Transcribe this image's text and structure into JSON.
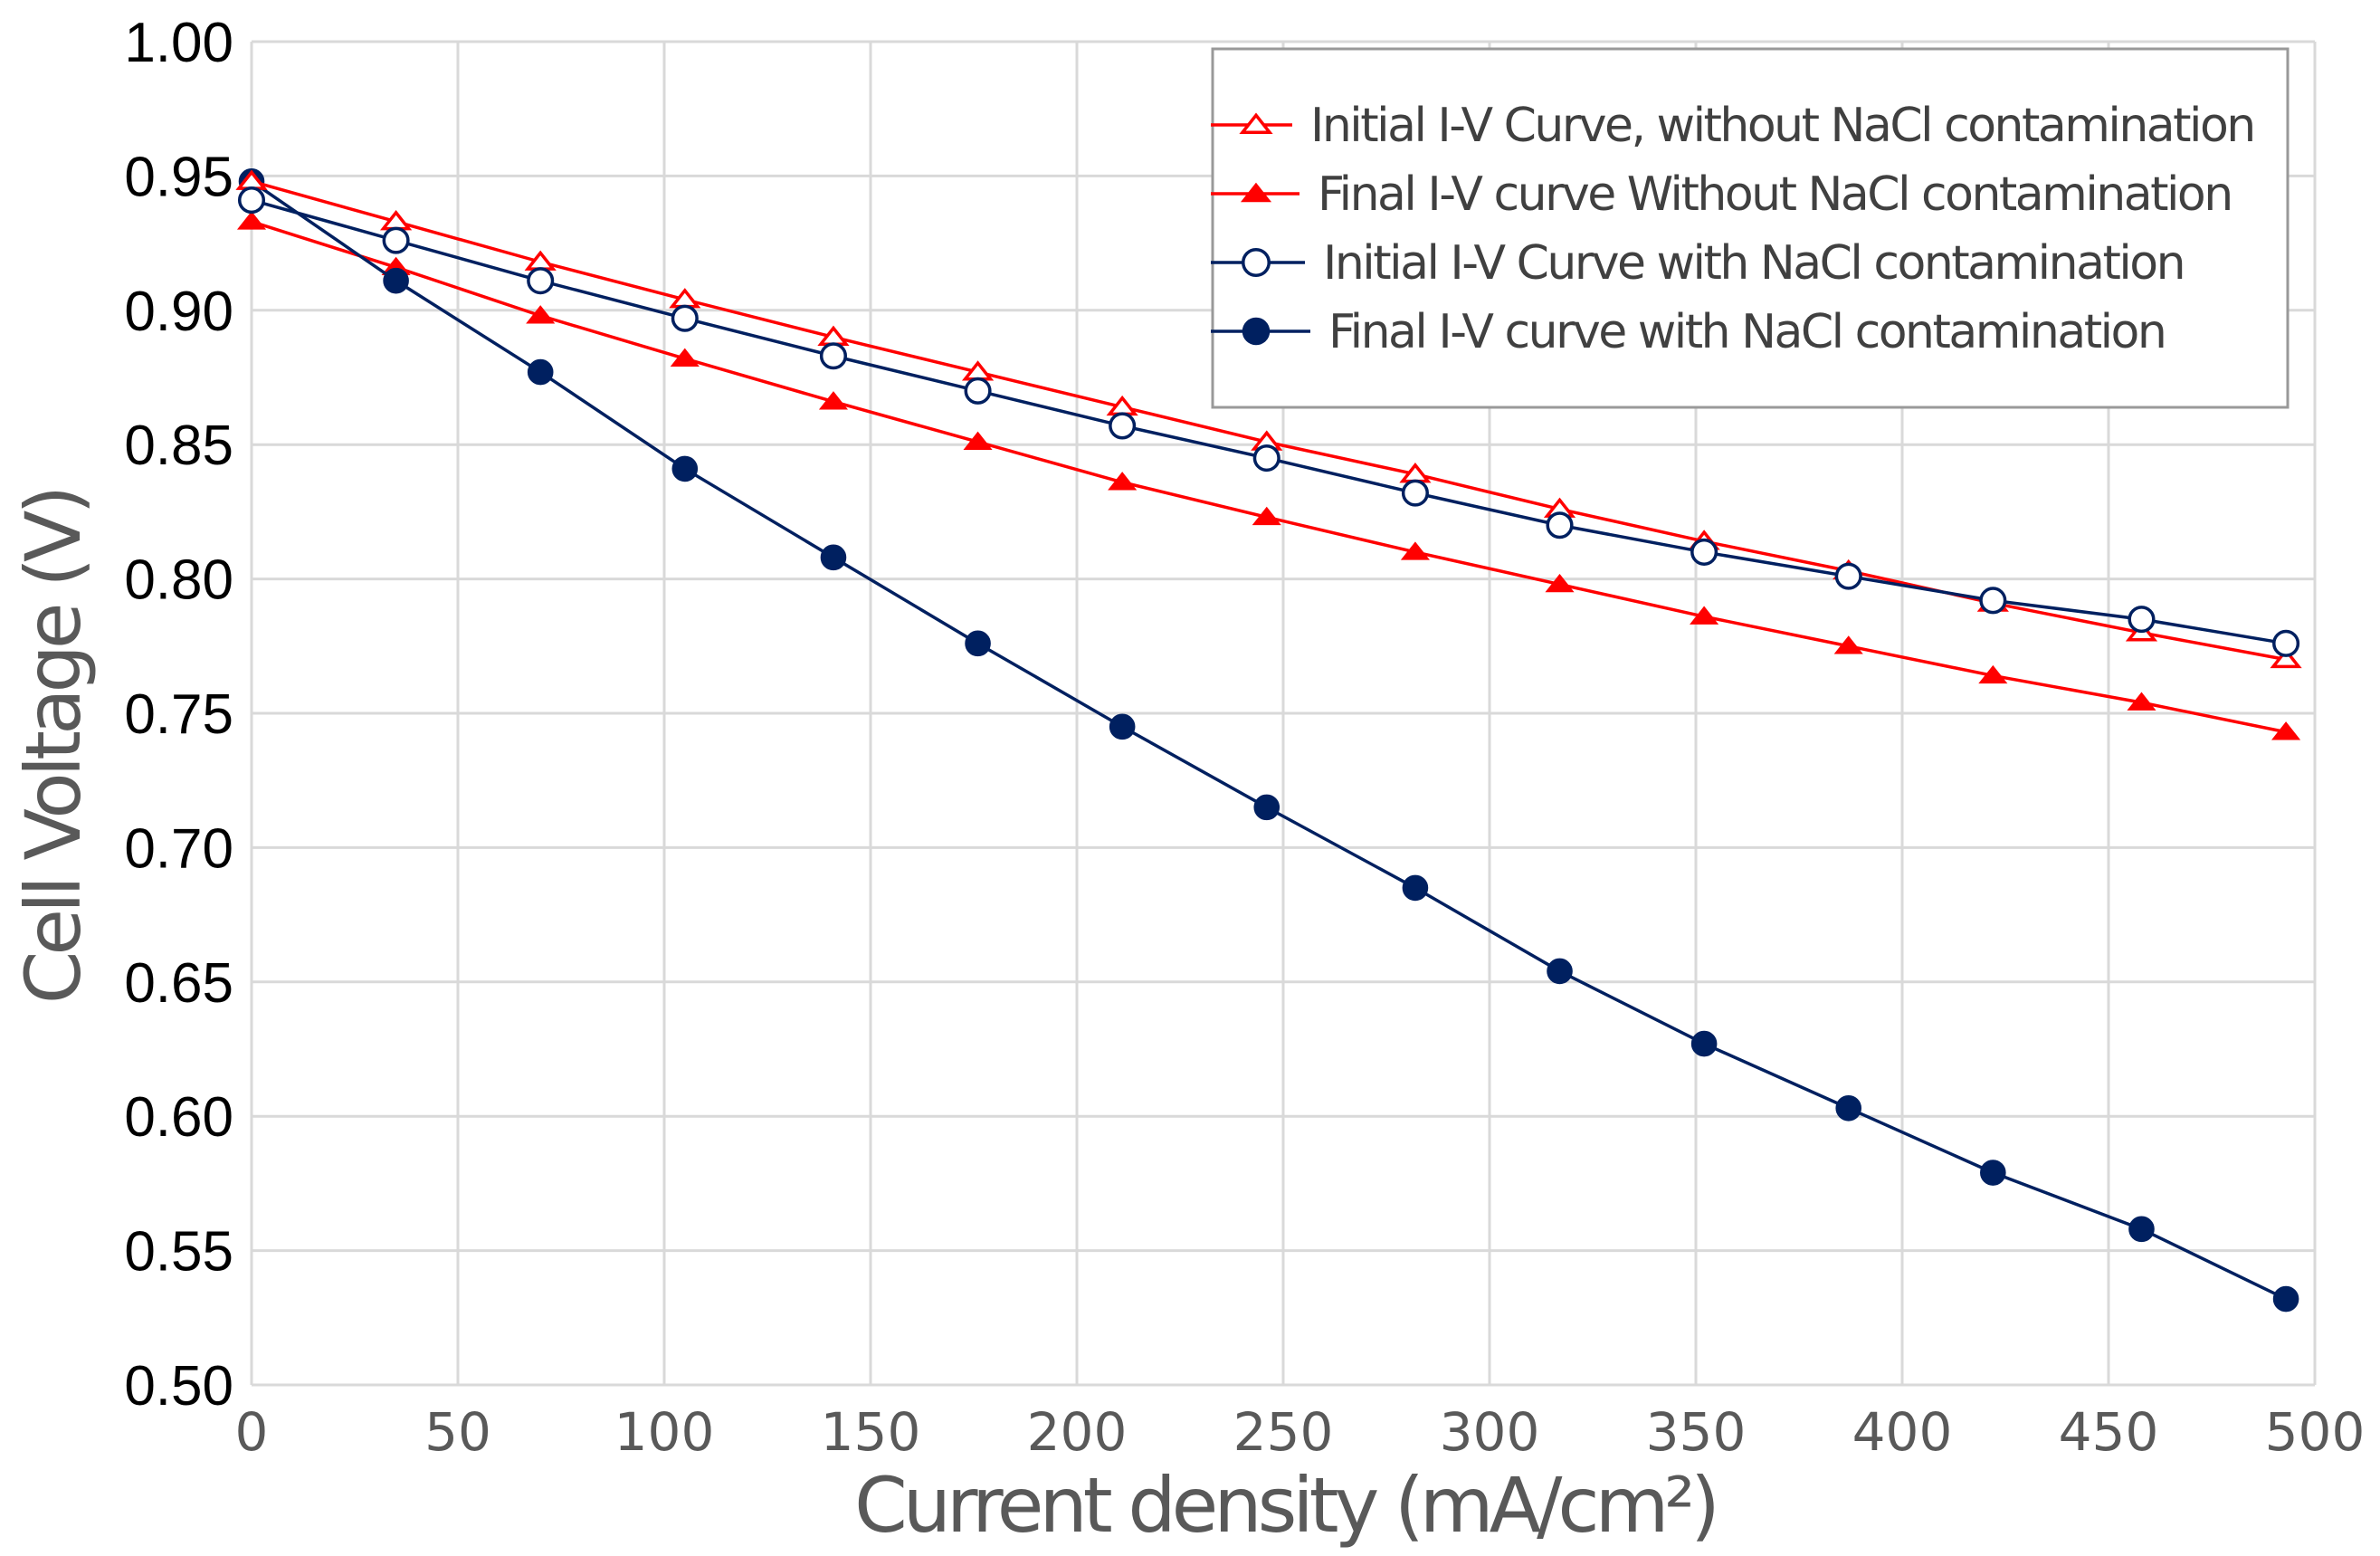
{
  "chart_data": {
    "type": "line",
    "title": "",
    "xlabel": "Current density (mA/cm²)",
    "ylabel": "Cell Voltage (V)",
    "xlim": [
      0,
      500
    ],
    "ylim": [
      0.5,
      1.0
    ],
    "x_ticks": [
      "0",
      "50",
      "100",
      "150",
      "200",
      "250",
      "300",
      "350",
      "400",
      "450",
      "500"
    ],
    "y_ticks": [
      "0.50",
      "0.55",
      "0.60",
      "0.65",
      "0.70",
      "0.75",
      "0.80",
      "0.85",
      "0.90",
      "0.95",
      "1.00"
    ],
    "grid": true,
    "legend_position": "top-right",
    "series": [
      {
        "name": "Initial I-V Curve, without NaCl contamination",
        "color": "#ff0000",
        "marker": "triangle-open",
        "x": [
          0,
          35,
          70,
          105,
          141,
          176,
          211,
          246,
          282,
          317,
          352,
          387,
          422,
          458,
          493
        ],
        "y": [
          0.948,
          0.933,
          0.918,
          0.904,
          0.89,
          0.877,
          0.864,
          0.851,
          0.839,
          0.826,
          0.814,
          0.803,
          0.791,
          0.78,
          0.77
        ]
      },
      {
        "name": "Final I-V curve Without NaCl contamination",
        "color": "#ff0000",
        "marker": "triangle-filled",
        "x": [
          0,
          35,
          70,
          105,
          141,
          176,
          211,
          246,
          282,
          317,
          352,
          387,
          422,
          458,
          493
        ],
        "y": [
          0.933,
          0.916,
          0.898,
          0.882,
          0.866,
          0.851,
          0.836,
          0.823,
          0.81,
          0.798,
          0.786,
          0.775,
          0.764,
          0.754,
          0.743
        ]
      },
      {
        "name": "Initial I-V Curve with NaCl contamination",
        "color": "#002060",
        "marker": "circle-open",
        "x": [
          0,
          35,
          70,
          105,
          141,
          176,
          211,
          246,
          282,
          317,
          352,
          387,
          422,
          458,
          493
        ],
        "y": [
          0.941,
          0.926,
          0.911,
          0.897,
          0.883,
          0.87,
          0.857,
          0.845,
          0.832,
          0.82,
          0.81,
          0.801,
          0.792,
          0.785,
          0.776
        ]
      },
      {
        "name": "Final I-V curve with NaCl contamination",
        "color": "#002060",
        "marker": "circle-filled",
        "x": [
          0,
          35,
          70,
          105,
          141,
          176,
          211,
          246,
          282,
          317,
          352,
          387,
          422,
          458,
          493
        ],
        "y": [
          0.948,
          0.911,
          0.877,
          0.841,
          0.808,
          0.776,
          0.745,
          0.715,
          0.685,
          0.654,
          0.627,
          0.603,
          0.579,
          0.558,
          0.532
        ]
      }
    ]
  }
}
